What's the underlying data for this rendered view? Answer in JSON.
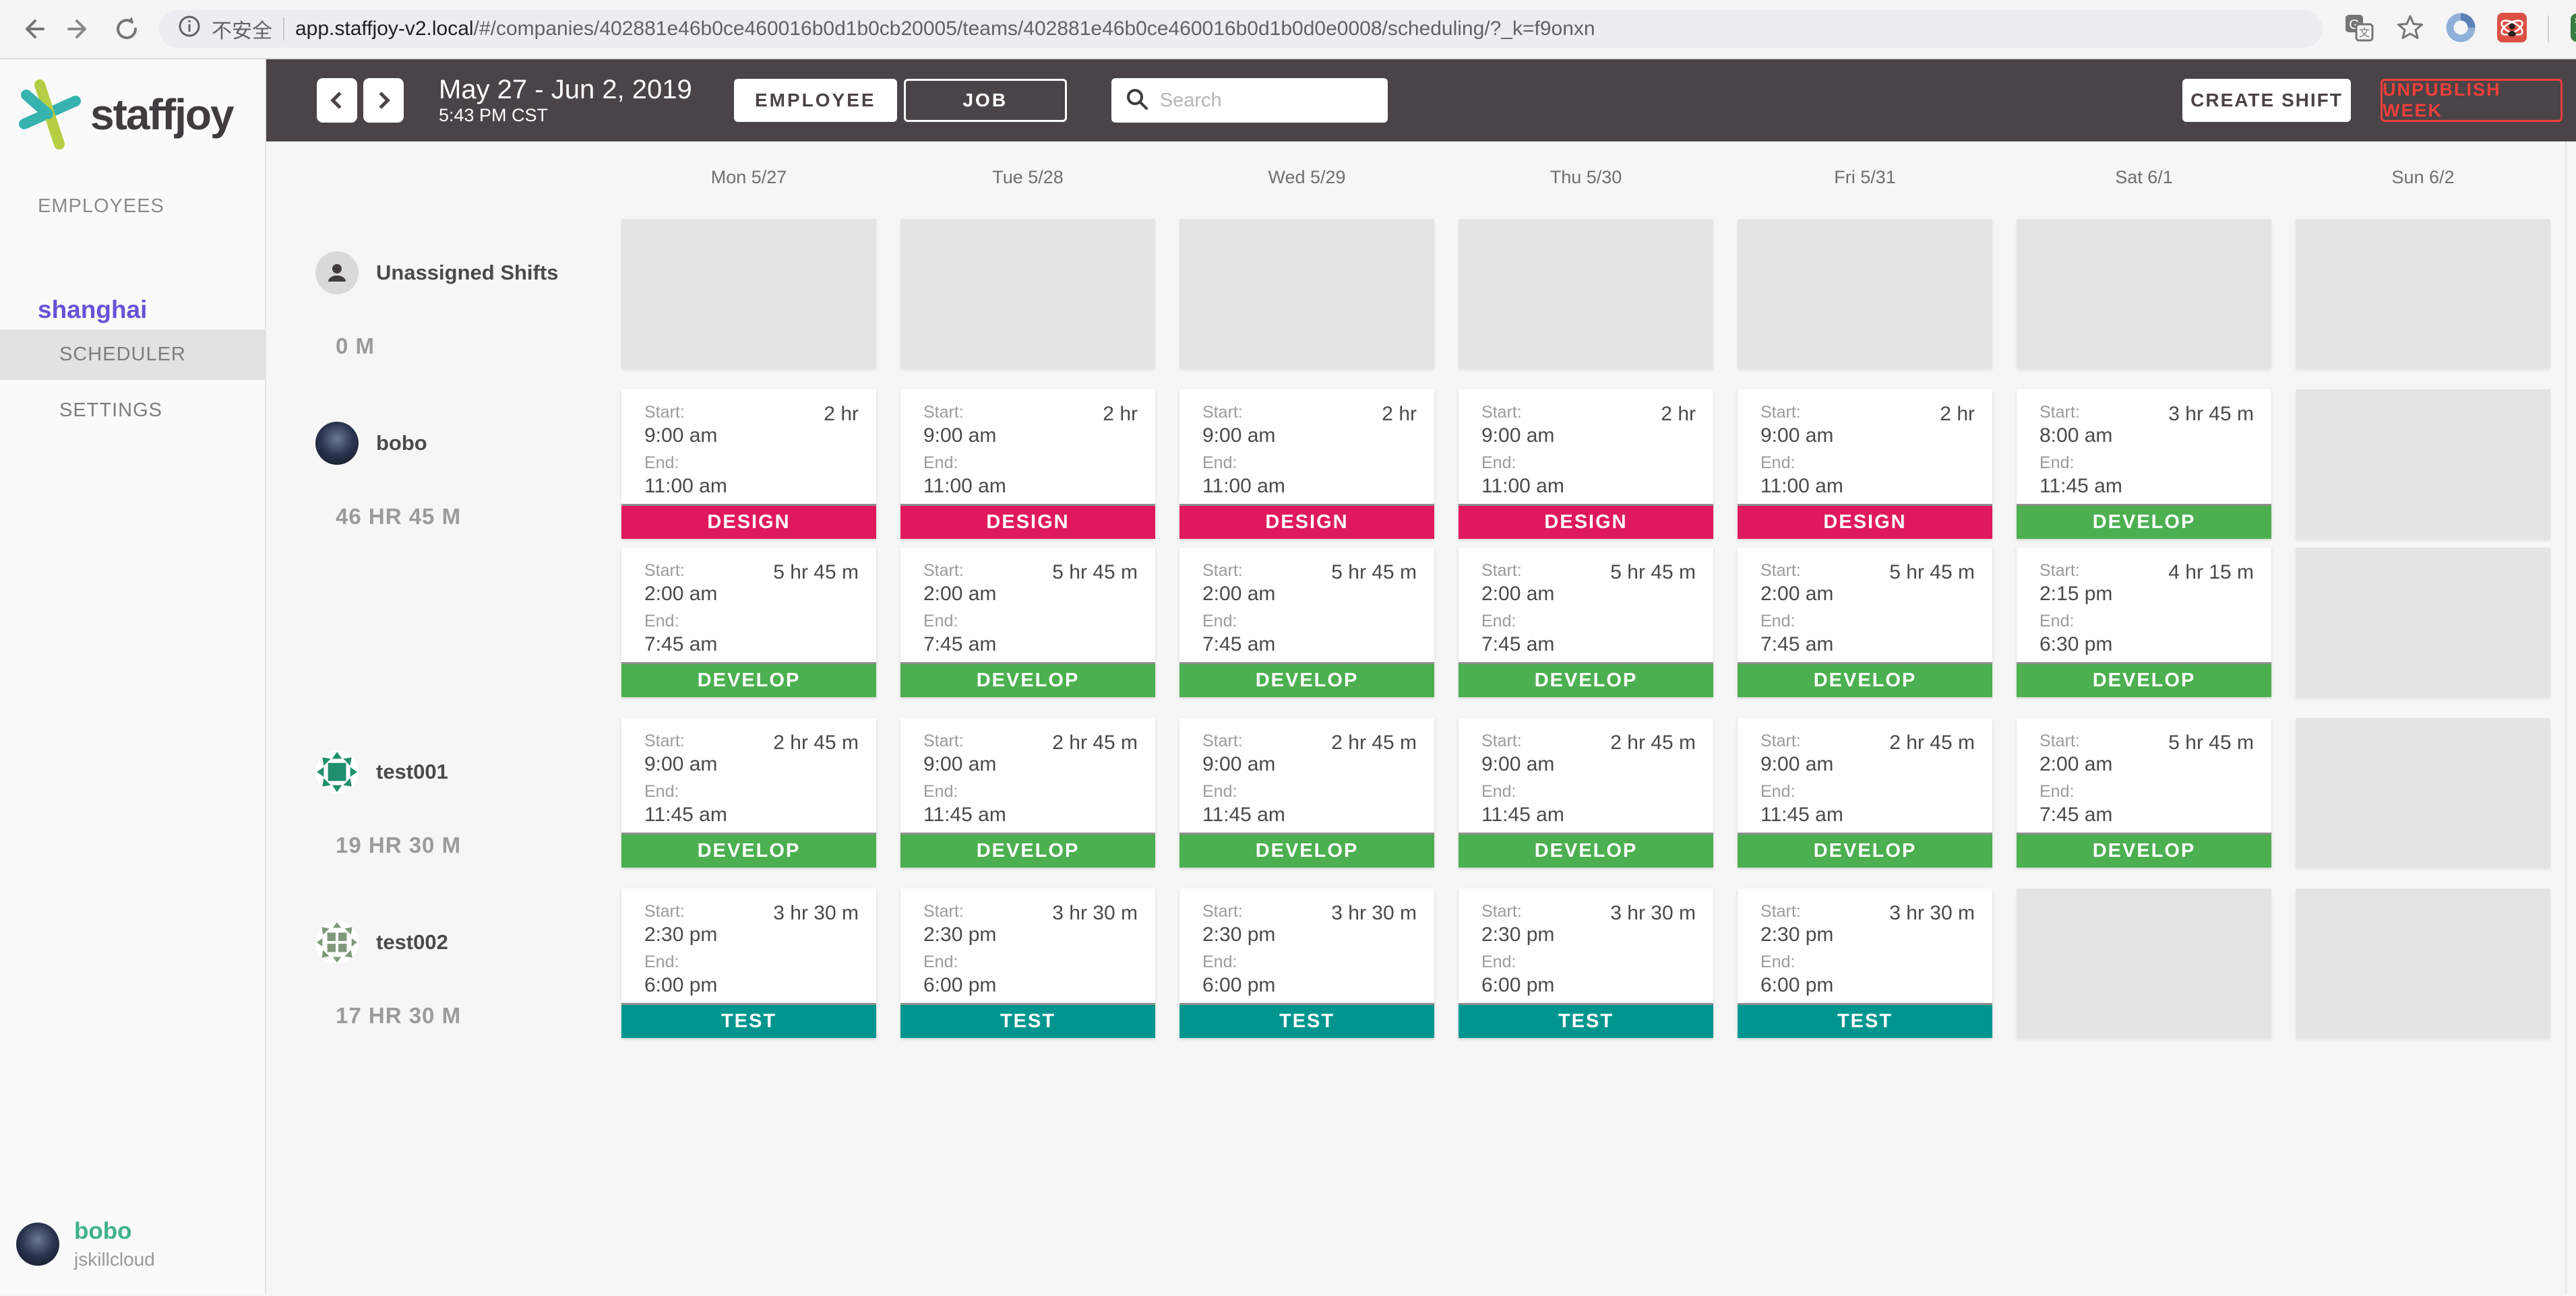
{
  "browser": {
    "security_label": "不安全",
    "url_host": "app.staffjoy-v2.local",
    "url_path": "/#/companies/402881e46b0ce460016b0d1b0cb20005/teams/402881e46b0ce460016b0d1b0d0e0008/scheduling/?_k=f9onxn"
  },
  "sidebar": {
    "brand": "staffjoy",
    "nav_employees": "EMPLOYEES",
    "team_name": "shanghai",
    "team_items": [
      {
        "label": "SCHEDULER",
        "active": true
      },
      {
        "label": "SETTINGS",
        "active": false
      }
    ],
    "user": {
      "name": "bobo",
      "company": "jskillcloud"
    }
  },
  "topbar": {
    "date_range": "May 27 - Jun 2, 2019",
    "time": "5:43 PM CST",
    "view_toggle": [
      {
        "label": "EMPLOYEE",
        "active": true
      },
      {
        "label": "JOB",
        "active": false
      }
    ],
    "search_placeholder": "Search",
    "create_shift": "CREATE SHIFT",
    "unpublish_week": "UNPUBLISH WEEK"
  },
  "colors": {
    "header_dark": "#4a4347",
    "accent_red": "#ef3f3a",
    "team_purple": "#6553d8",
    "user_green": "#3fb28a",
    "jobs": {
      "DESIGN": "#e0195e",
      "DEVELOP": "#4caf50",
      "TEST": "#00968f"
    }
  },
  "schedule": {
    "days": [
      "Mon 5/27",
      "Tue 5/28",
      "Wed 5/29",
      "Thu 5/30",
      "Fri 5/31",
      "Sat 6/1",
      "Sun 6/2"
    ],
    "labels": {
      "start": "Start:",
      "end": "End:"
    },
    "rows": [
      {
        "name": "Unassigned Shifts",
        "hours": "0 M",
        "avatar": "person",
        "days": [
          [
            {
              "empty": true
            }
          ],
          [
            {
              "empty": true
            }
          ],
          [
            {
              "empty": true
            }
          ],
          [
            {
              "empty": true
            }
          ],
          [
            {
              "empty": true
            }
          ],
          [
            {
              "empty": true
            }
          ],
          [
            {
              "empty": true
            }
          ]
        ]
      },
      {
        "name": "bobo",
        "hours": "46 HR 45 M",
        "avatar": "photo",
        "days": [
          [
            {
              "start": "9:00 am",
              "end": "11:00 am",
              "duration": "2 hr",
              "job": "DESIGN"
            },
            {
              "start": "2:00 am",
              "end": "7:45 am",
              "duration": "5 hr 45 m",
              "job": "DEVELOP"
            }
          ],
          [
            {
              "start": "9:00 am",
              "end": "11:00 am",
              "duration": "2 hr",
              "job": "DESIGN"
            },
            {
              "start": "2:00 am",
              "end": "7:45 am",
              "duration": "5 hr 45 m",
              "job": "DEVELOP"
            }
          ],
          [
            {
              "start": "9:00 am",
              "end": "11:00 am",
              "duration": "2 hr",
              "job": "DESIGN"
            },
            {
              "start": "2:00 am",
              "end": "7:45 am",
              "duration": "5 hr 45 m",
              "job": "DEVELOP"
            }
          ],
          [
            {
              "start": "9:00 am",
              "end": "11:00 am",
              "duration": "2 hr",
              "job": "DESIGN"
            },
            {
              "start": "2:00 am",
              "end": "7:45 am",
              "duration": "5 hr 45 m",
              "job": "DEVELOP"
            }
          ],
          [
            {
              "start": "9:00 am",
              "end": "11:00 am",
              "duration": "2 hr",
              "job": "DESIGN"
            },
            {
              "start": "2:00 am",
              "end": "7:45 am",
              "duration": "5 hr 45 m",
              "job": "DEVELOP"
            }
          ],
          [
            {
              "start": "8:00 am",
              "end": "11:45 am",
              "duration": "3 hr 45 m",
              "job": "DEVELOP"
            },
            {
              "start": "2:15 pm",
              "end": "6:30 pm",
              "duration": "4 hr 15 m",
              "job": "DEVELOP"
            }
          ],
          [
            {
              "empty": true
            },
            {
              "empty": true
            }
          ]
        ]
      },
      {
        "name": "test001",
        "hours": "19 HR 30 M",
        "avatar": "identicon-teal",
        "days": [
          [
            {
              "start": "9:00 am",
              "end": "11:45 am",
              "duration": "2 hr 45 m",
              "job": "DEVELOP"
            }
          ],
          [
            {
              "start": "9:00 am",
              "end": "11:45 am",
              "duration": "2 hr 45 m",
              "job": "DEVELOP"
            }
          ],
          [
            {
              "start": "9:00 am",
              "end": "11:45 am",
              "duration": "2 hr 45 m",
              "job": "DEVELOP"
            }
          ],
          [
            {
              "start": "9:00 am",
              "end": "11:45 am",
              "duration": "2 hr 45 m",
              "job": "DEVELOP"
            }
          ],
          [
            {
              "start": "9:00 am",
              "end": "11:45 am",
              "duration": "2 hr 45 m",
              "job": "DEVELOP"
            }
          ],
          [
            {
              "start": "2:00 am",
              "end": "7:45 am",
              "duration": "5 hr 45 m",
              "job": "DEVELOP"
            }
          ],
          [
            {
              "empty": true
            }
          ]
        ]
      },
      {
        "name": "test002",
        "hours": "17 HR 30 M",
        "avatar": "identicon-green",
        "days": [
          [
            {
              "start": "2:30 pm",
              "end": "6:00 pm",
              "duration": "3 hr 30 m",
              "job": "TEST"
            }
          ],
          [
            {
              "start": "2:30 pm",
              "end": "6:00 pm",
              "duration": "3 hr 30 m",
              "job": "TEST"
            }
          ],
          [
            {
              "start": "2:30 pm",
              "end": "6:00 pm",
              "duration": "3 hr 30 m",
              "job": "TEST"
            }
          ],
          [
            {
              "start": "2:30 pm",
              "end": "6:00 pm",
              "duration": "3 hr 30 m",
              "job": "TEST"
            }
          ],
          [
            {
              "start": "2:30 pm",
              "end": "6:00 pm",
              "duration": "3 hr 30 m",
              "job": "TEST"
            }
          ],
          [
            {
              "empty": true
            }
          ],
          [
            {
              "empty": true
            }
          ]
        ]
      }
    ]
  }
}
